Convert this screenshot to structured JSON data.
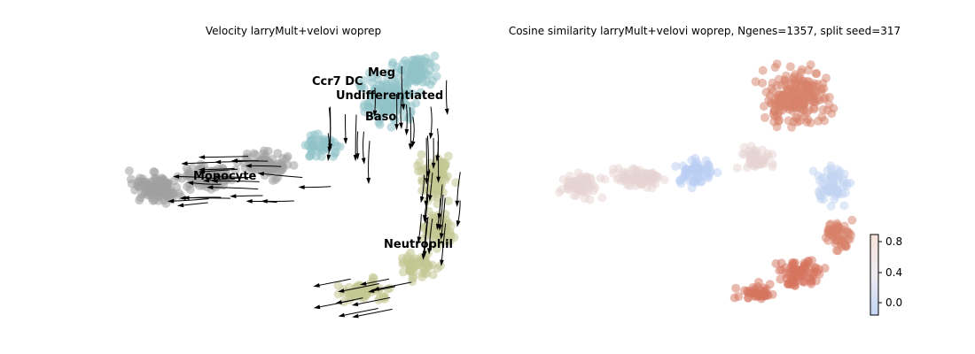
{
  "chart_data": [
    {
      "type": "scatter",
      "title": "Velocity larryMult+velovi woprep",
      "xlabel": "",
      "ylabel": "",
      "axes_visible": false,
      "overlay": "velocity streamlines (black, with arrowheads)",
      "legend": "on data",
      "clusters": [
        {
          "name": "Monocyte",
          "color": "#a0a0a0"
        },
        {
          "name": "Ccr7 DC",
          "color": "#8fc2c8"
        },
        {
          "name": "Meg",
          "color": "#8fc2c8"
        },
        {
          "name": "Undifferentiated",
          "color": "#8fc2c8"
        },
        {
          "name": "Baso",
          "color": "#8fc2c8"
        },
        {
          "name": "Neutrophil",
          "color": "#c2c792"
        }
      ]
    },
    {
      "type": "scatter",
      "title": "Cosine similarity larryMult+velovi woprep, Ngenes=1357, split seed=317",
      "xlabel": "",
      "ylabel": "",
      "axes_visible": false,
      "colormap": "coolwarm",
      "colorbar": {
        "ticks": [
          "0.8",
          "0.4",
          "0.0"
        ],
        "range": [
          -0.1,
          0.9
        ],
        "low_color": "#c4d5f7",
        "high_color": "#f7e2da"
      },
      "regions": [
        {
          "region": "upper lobe",
          "approx_value": 0.7,
          "color": "#d8816a"
        },
        {
          "region": "left arm",
          "approx_value": 0.1,
          "color": "#e6d4d2"
        },
        {
          "region": "central band",
          "approx_value": -0.1,
          "color": "#b9cdf3"
        },
        {
          "region": "right junction",
          "approx_value": -0.05,
          "color": "#c2d3f2"
        },
        {
          "region": "lower tail",
          "approx_value": 0.75,
          "color": "#d6735e"
        }
      ]
    }
  ]
}
